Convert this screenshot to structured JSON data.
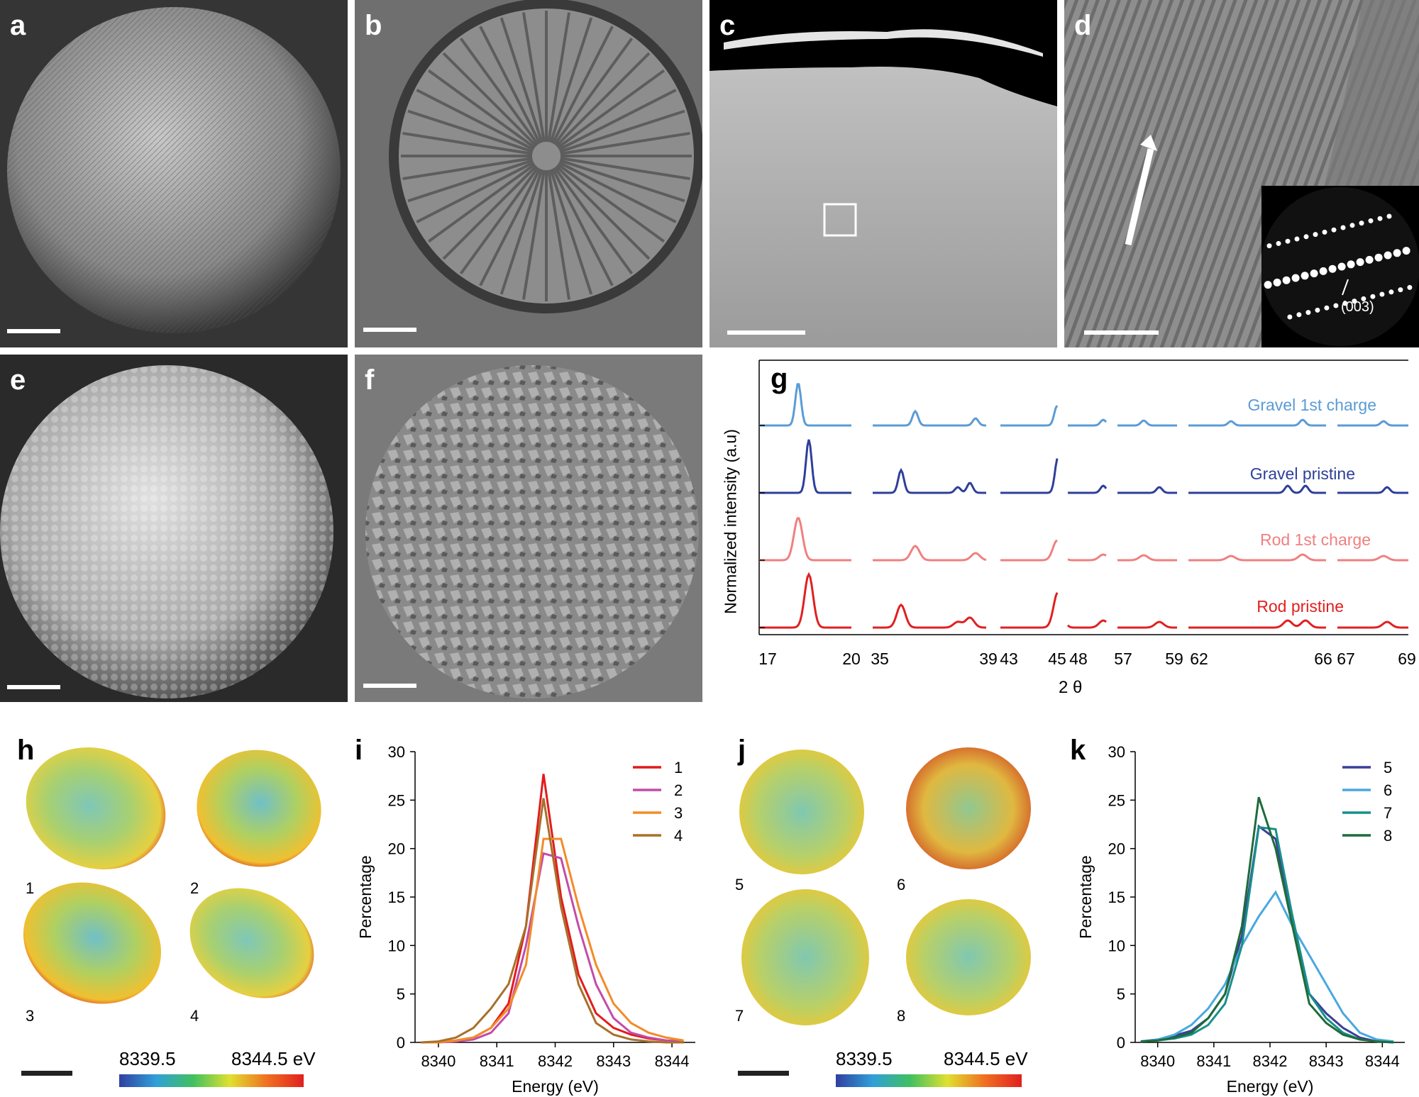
{
  "panels": {
    "a": "a",
    "b": "b",
    "c": "c",
    "d": "d",
    "e": "e",
    "f": "f",
    "g": "g",
    "h": "h",
    "i": "i",
    "j": "j",
    "k": "k"
  },
  "d_inset_label": "(003)",
  "g": {
    "ylabel": "Normalized intensity (a.u)",
    "xlabel": "2 θ",
    "tick_labels": [
      "17",
      "20",
      "35",
      "39",
      "43",
      "45",
      "48",
      "57",
      "59",
      "62",
      "66",
      "67",
      "69"
    ],
    "series_labels": [
      "Gravel 1st charge",
      "Gravel pristine",
      "Rod 1st charge",
      "Rod pristine"
    ],
    "colors": [
      "#5b9bd5",
      "#2e3f9a",
      "#f08080",
      "#e02020"
    ]
  },
  "h_maps": [
    "1",
    "2",
    "3",
    "4"
  ],
  "j_maps": [
    "5",
    "6",
    "7",
    "8"
  ],
  "colorbar": {
    "min": "8339.5",
    "max": "8344.5 eV"
  },
  "chart_data": [
    {
      "type": "line",
      "id": "i",
      "xlabel": "Energy (eV)",
      "ylabel": "Percentage",
      "xticks": [
        "8340",
        "8341",
        "8342",
        "8343",
        "8344"
      ],
      "yticks": [
        "0",
        "5",
        "10",
        "15",
        "20",
        "25",
        "30"
      ],
      "xlim": [
        8339.6,
        8344.4
      ],
      "ylim": [
        0,
        30
      ],
      "x": [
        8339.7,
        8340.0,
        8340.3,
        8340.6,
        8340.9,
        8341.2,
        8341.5,
        8341.8,
        8342.1,
        8342.4,
        8342.7,
        8343.0,
        8343.3,
        8343.6,
        8343.9,
        8344.2
      ],
      "series": [
        {
          "name": "1",
          "color": "#e41a1c",
          "values": [
            0,
            0,
            0.2,
            0.5,
            1.5,
            4,
            12,
            27.7,
            15,
            7,
            3,
            1.5,
            0.8,
            0.4,
            0.2,
            0.1
          ]
        },
        {
          "name": "2",
          "color": "#c24ca8",
          "values": [
            0,
            0,
            0.1,
            0.3,
            1,
            3,
            10,
            19.5,
            19,
            12,
            6,
            2.5,
            1,
            0.5,
            0.2,
            0.1
          ]
        },
        {
          "name": "3",
          "color": "#f28c28",
          "values": [
            0,
            0,
            0.2,
            0.5,
            1.5,
            3.5,
            8,
            21,
            21,
            14,
            8,
            4,
            2,
            1,
            0.5,
            0.2
          ]
        },
        {
          "name": "4",
          "color": "#a8702a",
          "values": [
            0,
            0.1,
            0.5,
            1.5,
            3.5,
            6,
            12,
            25.2,
            14,
            6,
            2,
            0.8,
            0.3,
            0.1,
            0,
            0
          ]
        }
      ]
    },
    {
      "type": "line",
      "id": "k",
      "xlabel": "Energy (eV)",
      "ylabel": "Percentage",
      "xticks": [
        "8340",
        "8341",
        "8342",
        "8343",
        "8344"
      ],
      "yticks": [
        "0",
        "5",
        "10",
        "15",
        "20",
        "25",
        "30"
      ],
      "xlim": [
        8339.6,
        8344.4
      ],
      "ylim": [
        0,
        30
      ],
      "x": [
        8339.7,
        8340.0,
        8340.3,
        8340.6,
        8340.9,
        8341.2,
        8341.5,
        8341.8,
        8342.1,
        8342.4,
        8342.7,
        8343.0,
        8343.3,
        8343.6,
        8343.9,
        8344.2
      ],
      "series": [
        {
          "name": "5",
          "color": "#3b3f9a",
          "values": [
            0.1,
            0.3,
            0.7,
            1.2,
            2.5,
            5,
            11,
            22.3,
            21,
            13,
            5,
            3,
            1.5,
            0.5,
            0.1,
            0
          ]
        },
        {
          "name": "6",
          "color": "#4aa8e0",
          "values": [
            0.1,
            0.3,
            0.8,
            1.8,
            3.5,
            6,
            10,
            13,
            15.5,
            12,
            9,
            6,
            3,
            1,
            0.3,
            0.1
          ]
        },
        {
          "name": "7",
          "color": "#17908c",
          "values": [
            0.1,
            0.2,
            0.4,
            0.8,
            1.8,
            4,
            10,
            22.2,
            22,
            13,
            5,
            2.5,
            1,
            0.3,
            0.1,
            0
          ]
        },
        {
          "name": "8",
          "color": "#1f6b3a",
          "values": [
            0.1,
            0.2,
            0.5,
            1,
            2.5,
            5,
            12,
            25.3,
            20,
            12,
            4,
            2,
            0.8,
            0.3,
            0.1,
            0
          ]
        }
      ]
    }
  ]
}
